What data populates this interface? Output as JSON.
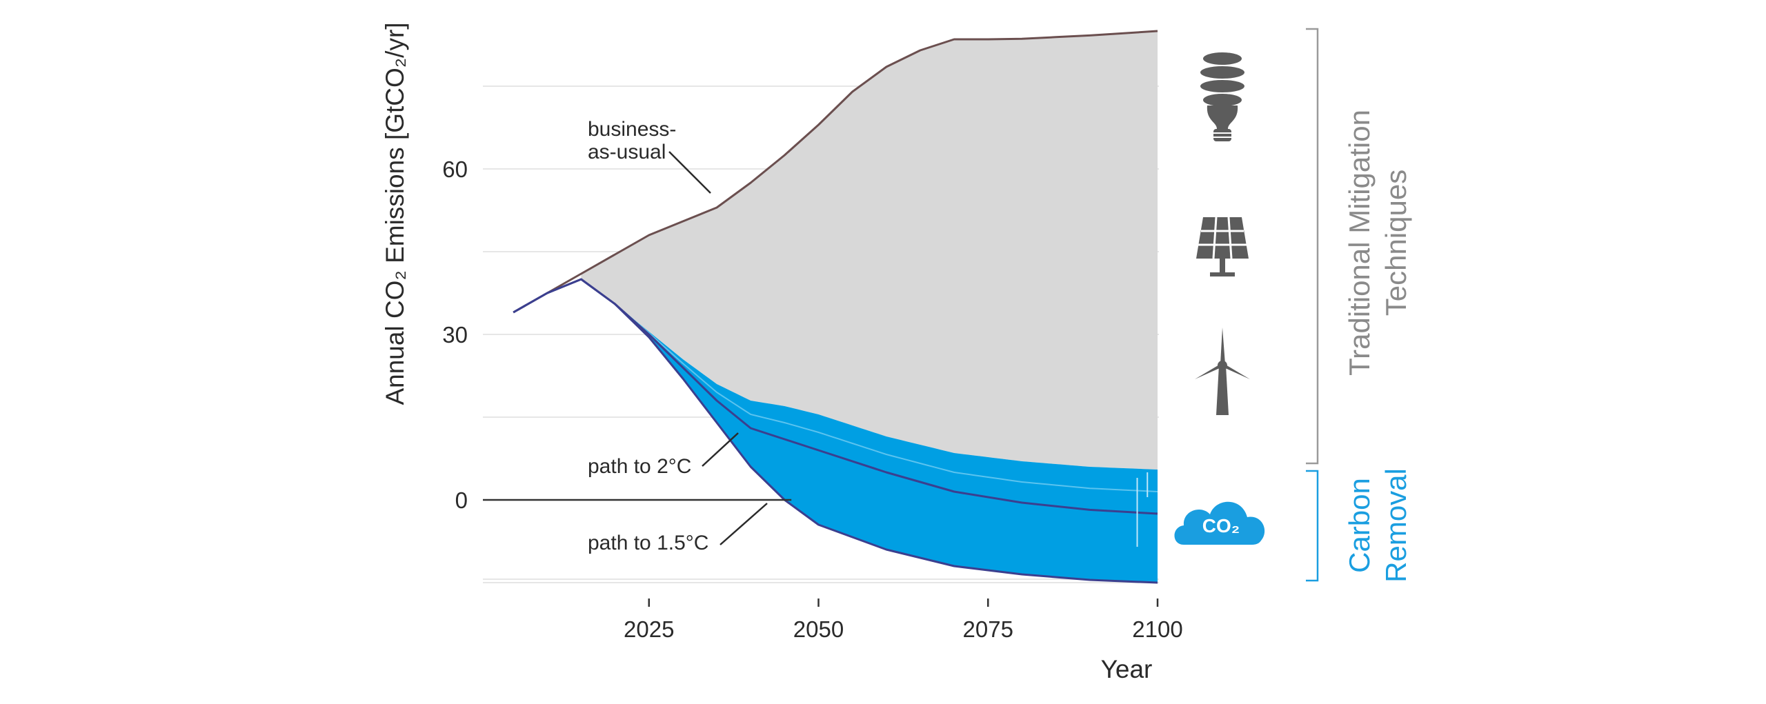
{
  "chart_data": {
    "type": "area",
    "xlabel": "Year",
    "ylabel": "Annual CO₂ Emissions [GtCO₂/yr]",
    "xlim": [
      2000,
      2100
    ],
    "ylim": [
      -15,
      85
    ],
    "x_ticks": [
      2025,
      2050,
      2075,
      2100
    ],
    "y_ticks": [
      0,
      30,
      60
    ],
    "grid": "horizontal",
    "colors": {
      "business_as_usual_fill": "#d8d8d8",
      "business_as_usual_line": "#6b4f4f",
      "removal_fill": "#009fe3",
      "pathway_line": "#3b3f8f",
      "traditional_bracket": "#9a9a9a",
      "carbon_bracket": "#1a9ee0"
    },
    "series": [
      {
        "name": "business-as-usual",
        "x": [
          2005,
          2010,
          2015,
          2020,
          2025,
          2030,
          2035,
          2040,
          2045,
          2050,
          2055,
          2060,
          2065,
          2070,
          2075,
          2080,
          2085,
          2090,
          2095,
          2100
        ],
        "values": [
          34,
          37.5,
          41,
          44.5,
          48,
          50.5,
          53,
          57.5,
          62.5,
          68,
          74,
          78.5,
          81.5,
          83.5,
          83.5,
          83.6,
          83.9,
          84.2,
          84.6,
          85
        ]
      },
      {
        "name": "path to 2°C",
        "x": [
          2005,
          2010,
          2015,
          2020,
          2025,
          2030,
          2035,
          2040,
          2045,
          2050,
          2060,
          2070,
          2080,
          2090,
          2100
        ],
        "values": [
          34,
          37.5,
          40,
          35.5,
          30,
          24,
          18,
          13,
          11,
          9,
          5,
          1.5,
          -0.5,
          -1.8,
          -2.5
        ]
      },
      {
        "name": "path to 1.5°C",
        "x": [
          2005,
          2010,
          2015,
          2020,
          2025,
          2030,
          2035,
          2040,
          2045,
          2050,
          2060,
          2070,
          2080,
          2090,
          2100
        ],
        "values": [
          34,
          37.5,
          40,
          35.5,
          29.5,
          22,
          14,
          6,
          0,
          -4.5,
          -9,
          -12,
          -13.5,
          -14.5,
          -15
        ]
      }
    ],
    "removal_band_upper": {
      "x": [
        2015,
        2020,
        2025,
        2030,
        2035,
        2040,
        2045,
        2050,
        2060,
        2070,
        2080,
        2090,
        2100
      ],
      "values": [
        40,
        35.5,
        30.5,
        25.5,
        21,
        18,
        17,
        15.5,
        11.5,
        8.5,
        7,
        6,
        5.5
      ]
    },
    "annotations": {
      "bau_line1": "business-",
      "bau_line2": "as-usual",
      "path2": "path to 2°C",
      "path15": "path to 1.5°C"
    },
    "side_labels": {
      "traditional_line1": "Traditional Mitigation",
      "traditional_line2": "Techniques",
      "carbon_line1": "Carbon",
      "carbon_line2": "Removal",
      "co2_icon_text": "CO₂"
    },
    "icons": [
      "light-bulb-icon",
      "solar-panel-icon",
      "wind-turbine-icon",
      "co2-cloud-icon"
    ]
  }
}
